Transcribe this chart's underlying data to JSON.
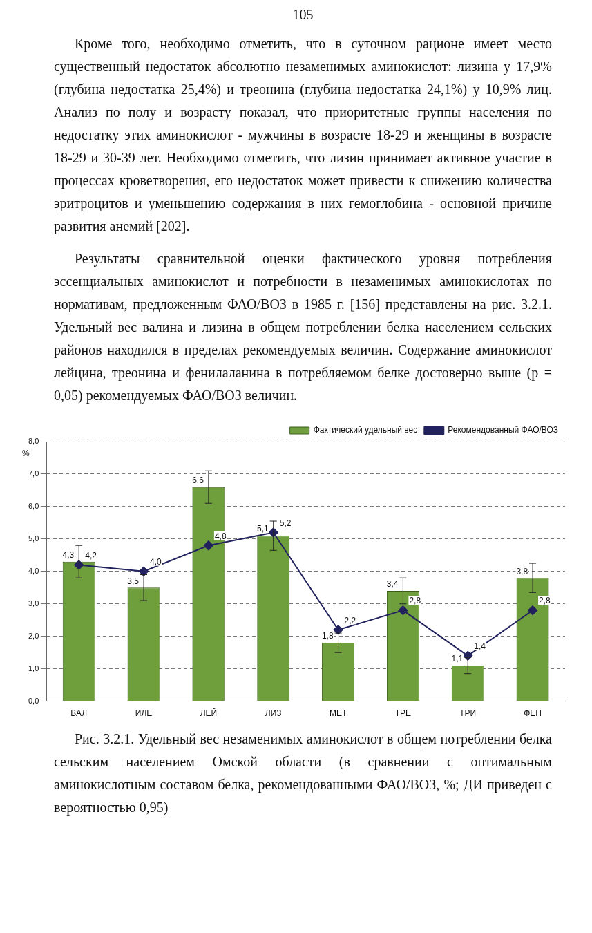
{
  "chart_data": {
    "type": "bar",
    "ylabel": "%",
    "categories": [
      "ВАЛ",
      "ИЛЕ",
      "ЛЕЙ",
      "ЛИЗ",
      "МЕТ",
      "ТРЕ",
      "ТРИ",
      "ФЕН"
    ],
    "series": [
      {
        "name": "Фактический удельный вес",
        "color": "#6f9f3c",
        "values": [
          4.3,
          3.5,
          6.6,
          5.1,
          1.8,
          3.4,
          1.1,
          3.8
        ],
        "errors": [
          0.5,
          0.4,
          0.5,
          0.45,
          0.3,
          0.4,
          0.25,
          0.45
        ],
        "value_labels": [
          "4,3",
          "3,5",
          "6,6",
          "5,1",
          "1,8",
          "3,4",
          "1,1",
          "3,8"
        ]
      },
      {
        "name": "Рекомендованный ФАО/ВОЗ",
        "type": "line",
        "color": "#22225e",
        "values": [
          4.2,
          4.0,
          4.8,
          5.2,
          2.2,
          2.8,
          1.4,
          2.8
        ],
        "value_labels": [
          "4,2",
          "4,0",
          "4,8",
          "5,2",
          "2,2",
          "2,8",
          "1,4",
          "2,8"
        ]
      }
    ],
    "ylim": [
      0,
      8
    ],
    "yticks": [
      {
        "value": 0,
        "label": "0,0"
      },
      {
        "value": 1,
        "label": "1,0"
      },
      {
        "value": 2,
        "label": "2,0"
      },
      {
        "value": 3,
        "label": "3,0"
      },
      {
        "value": 4,
        "label": "4,0"
      },
      {
        "value": 5,
        "label": "5,0"
      },
      {
        "value": 6,
        "label": "6,0"
      },
      {
        "value": 7,
        "label": "7,0"
      },
      {
        "value": 8,
        "label": "8,0"
      }
    ],
    "grid": "y",
    "legend": "top right",
    "marker": "diamond",
    "line_style": "solid",
    "annotations": [
      "105",
      "Кроме того, необходимо отметить, что в суточном рационе имеет место существенный недостаток абсолютно незаменимых аминокислот: лизина у 17,9% (глубина недостатка 25,4%) и треонина (глубина недостатка 24,1%) у 10,9% лиц. Анализ по полу и возрасту показал, что приоритетные группы населения по недостатку этих аминокислот - мужчины в возрасте 18-29 и женщины в возрасте 18-29 и 30-39 лет. Необходимо отметить, что лизин принимает активное участие в процессах кроветворения, его недостаток может привести к снижению количества эритроцитов и уменьшению содержания в них гемоглобина - основной причине развития анемий [202].",
      "Результаты сравнительной оценки фактического уровня потребления эссенциальных аминокислот и потребности в незаменимых аминокислотах по нормативам, предложенным ФАО/ВОЗ в 1985 г. [156] представлены на рис. 3.2.1. Удельный вес валина и лизина в общем потреблении белка населением сельских районов находился в пределах рекомендуемых величин. Содержание аминокислот лейцина, треонина и фенилаланина в потребляемом белке достоверно выше (р = 0,05) рекомендуемых ФАО/ВОЗ величин.",
      "Рис. 3.2.1. Удельный вес незаменимых аминокислот в общем потреблении белка сельским населением Омской области (в сравнении с оптимальным аминокислотным составом белка, рекомендованными ФАО/ВОЗ, %; ДИ приведен с вероятностью 0,95)"
    ]
  }
}
